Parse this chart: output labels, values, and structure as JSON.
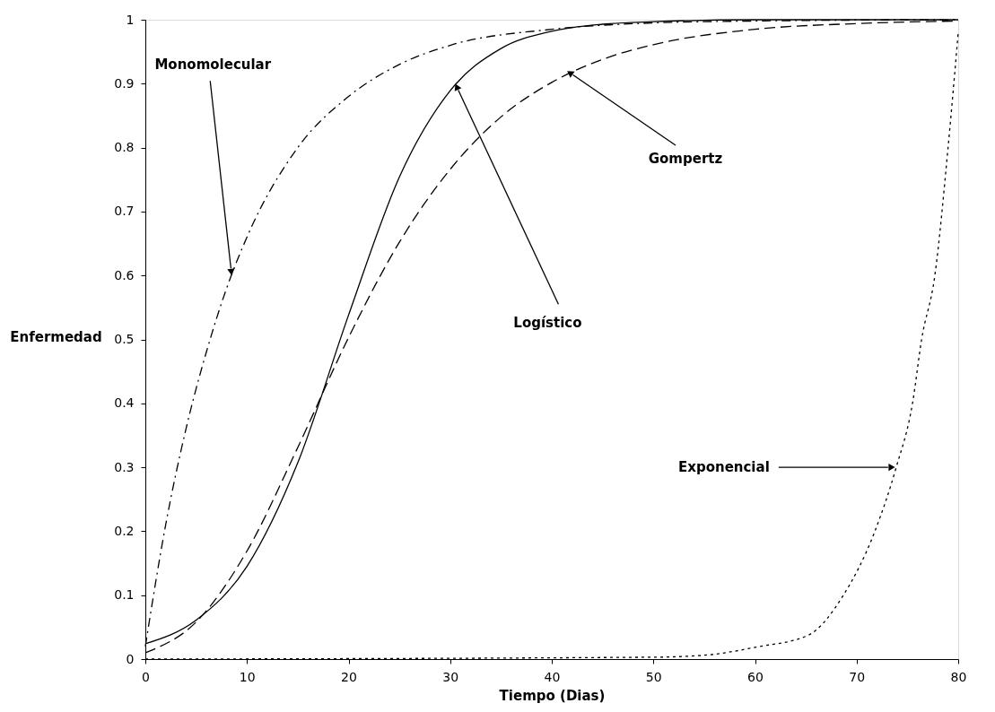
{
  "chart_data": {
    "type": "line",
    "xlabel": "Tiempo (Dias)",
    "ylabel": "Enfermedad",
    "xlim": [
      0,
      80
    ],
    "ylim": [
      0,
      1
    ],
    "xticks": [
      0,
      10,
      20,
      30,
      40,
      50,
      60,
      70,
      80
    ],
    "yticks": [
      0,
      0.1,
      0.2,
      0.3,
      0.4,
      0.5,
      0.6,
      0.7,
      0.8,
      0.9,
      1
    ],
    "grid": false,
    "marker": "none",
    "series": [
      {
        "color": "#000000",
        "line_style": "dashdot",
        "x": [
          0,
          2,
          4,
          6,
          8,
          10,
          15,
          20,
          25,
          30,
          40,
          50,
          60,
          80
        ],
        "values": [
          0.02,
          0.21,
          0.36,
          0.48,
          0.58,
          0.66,
          0.8,
          0.88,
          0.93,
          0.96,
          0.985,
          0.995,
          0.998,
          1
        ]
      },
      {
        "color": "#000000",
        "line_style": "solid",
        "x": [
          0,
          5,
          10,
          15,
          20,
          25,
          30,
          35,
          40,
          45,
          50,
          60,
          80
        ],
        "values": [
          0.024,
          0.061,
          0.145,
          0.307,
          0.538,
          0.754,
          0.889,
          0.955,
          0.982,
          0.993,
          0.997,
          1,
          1
        ]
      },
      {
        "color": "#000000",
        "line_style": "dashed",
        "x": [
          0,
          5,
          10,
          15,
          20,
          25,
          30,
          35,
          40,
          45,
          50,
          60,
          70,
          80
        ],
        "values": [
          0.01,
          0.058,
          0.169,
          0.331,
          0.503,
          0.652,
          0.766,
          0.848,
          0.902,
          0.938,
          0.961,
          0.985,
          0.994,
          0.998
        ]
      },
      {
        "color": "#000000",
        "line_style": "dotted",
        "x": [
          0,
          50,
          55,
          60.2,
          65.2,
          68.7,
          71.8,
          73.9,
          75.5,
          76.4,
          77.7,
          79,
          80
        ],
        "values": [
          0,
          0.003,
          0.006,
          0.019,
          0.037,
          0.1,
          0.2,
          0.3,
          0.4,
          0.5,
          0.6,
          0.8,
          0.98
        ]
      }
    ],
    "annotations": [
      {
        "text": "Monomolecular",
        "x": 8.5,
        "y": 0.6
      },
      {
        "text": "Logístico",
        "x": 30.5,
        "y": 0.9
      },
      {
        "text": "Gompertz",
        "x": 41.5,
        "y": 0.92
      },
      {
        "text": "Exponencial",
        "x": 73.8,
        "y": 0.3
      }
    ]
  }
}
